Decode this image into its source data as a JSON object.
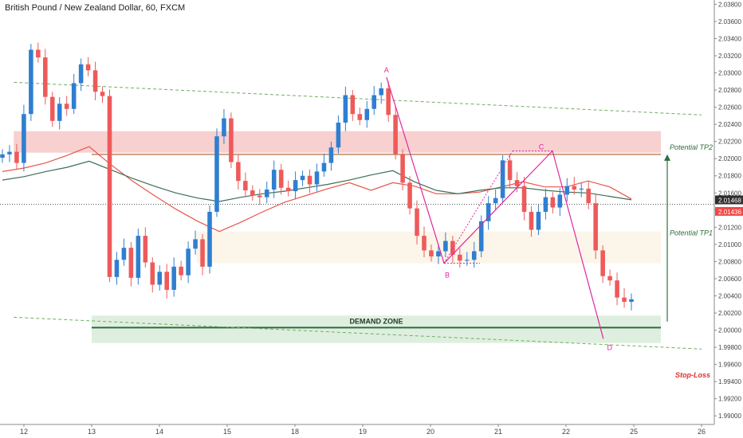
{
  "chart_data": {
    "type": "candlestick",
    "title": "British Pound / New Zealand Dollar, 60, FXCM",
    "y_axis": {
      "ticks": [
        "2.03800",
        "2.03600",
        "2.03400",
        "2.03200",
        "2.03000",
        "2.02800",
        "2.02600",
        "2.02400",
        "2.02200",
        "2.02000",
        "2.01800",
        "2.01600",
        "2.01400",
        "2.01200",
        "2.01000",
        "2.00800",
        "2.00600",
        "2.00400",
        "2.00200",
        "2.00000",
        "1.99800",
        "1.99600",
        "1.99400",
        "1.99200",
        "1.99000"
      ],
      "min": 1.989,
      "max": 2.0385,
      "price_labels": [
        {
          "text": "2.01468",
          "value": 2.01468,
          "color": "#2d2d2d"
        },
        {
          "text": "2.01436",
          "value": 2.01436,
          "color": "#f04848"
        }
      ]
    },
    "x_axis": {
      "ticks": [
        {
          "label": "12",
          "day": 12
        },
        {
          "label": "13",
          "day": 13
        },
        {
          "label": "14",
          "day": 14
        },
        {
          "label": "15",
          "day": 15
        },
        {
          "label": "18",
          "day": 16
        },
        {
          "label": "19",
          "day": 17
        },
        {
          "label": "20",
          "day": 18
        },
        {
          "label": "21",
          "day": 19
        },
        {
          "label": "22",
          "day": 20
        },
        {
          "label": "25",
          "day": 21
        },
        {
          "label": "26",
          "day": 22
        }
      ]
    },
    "zones": [
      {
        "name": "resistance-zone",
        "y1": 2.0207,
        "y2": 2.0232,
        "x1": 11.85,
        "x2": 21.4,
        "color": "#f7c8c8"
      },
      {
        "name": "mid-zone",
        "y1": 2.0078,
        "y2": 2.0115,
        "x1": 14.55,
        "x2": 21.4,
        "color": "#fbf3e6"
      },
      {
        "name": "demand-zone",
        "y1": 1.9985,
        "y2": 2.0017,
        "x1": 13.0,
        "x2": 21.4,
        "color": "#d9ecd9",
        "label": "DEMAND ZONE"
      }
    ],
    "levels": [
      {
        "name": "tp2-level",
        "value": 2.0205,
        "x1": 13.0,
        "x2": 21.4,
        "color": "#c9a184"
      },
      {
        "name": "demand-line",
        "value": 2.0003,
        "x1": 13.0,
        "x2": 21.4,
        "color": "#2e6b3e"
      }
    ],
    "channel": [
      {
        "name": "channel-top",
        "x1": 11.85,
        "y1": 2.0289,
        "x2": 22.0,
        "y2": 2.0251
      },
      {
        "name": "channel-bottom",
        "x1": 11.85,
        "y1": 2.0015,
        "x2": 22.0,
        "y2": 1.9978
      }
    ],
    "pattern_points": [
      {
        "label": "A",
        "x": 17.35,
        "y": 2.0295
      },
      {
        "label": "B",
        "x": 18.2,
        "y": 2.0078
      },
      {
        "label": "C",
        "x": 19.8,
        "y": 2.0209
      },
      {
        "label": "D",
        "x": 20.55,
        "y": 1.999
      }
    ],
    "targets": [
      {
        "label": "Potential TP2",
        "value": 2.0205
      },
      {
        "label": "Potential TP1",
        "value": 2.0105
      },
      {
        "label": "Stop-Loss",
        "value": 1.9945
      }
    ],
    "close": [
      2.0205,
      2.0208,
      2.0195,
      2.0252,
      2.0327,
      2.0318,
      2.0272,
      2.0244,
      2.0264,
      2.0258,
      2.0288,
      2.031,
      2.0303,
      2.0278,
      2.0273,
      2.0062,
      2.0082,
      2.0096,
      2.0061,
      2.011,
      2.0079,
      2.0053,
      2.0068,
      2.0047,
      2.0074,
      2.0064,
      2.0095,
      2.0106,
      2.0074,
      2.0138,
      2.0226,
      2.0247,
      2.0196,
      2.0174,
      2.0163,
      2.0157,
      2.0155,
      2.0164,
      2.0187,
      2.0166,
      2.0162,
      2.0175,
      2.018,
      2.017,
      2.0185,
      2.0195,
      2.0213,
      2.0242,
      2.0274,
      2.0252,
      2.0245,
      2.0258,
      2.0274,
      2.0282,
      2.0251,
      2.0205,
      2.0172,
      2.0142,
      2.011,
      2.0093,
      2.0086,
      2.0092,
      2.0104,
      2.0088,
      2.0081,
      2.0082,
      2.0092,
      2.0127,
      2.0148,
      2.0154,
      2.0198,
      2.0175,
      2.0168,
      2.0138,
      2.0117,
      2.0138,
      2.0155,
      2.0143,
      2.0158,
      2.0168,
      2.0164,
      2.0165,
      2.0148,
      2.0093,
      2.0063,
      2.0058,
      2.0038,
      2.0033,
      2.0036
    ],
    "opens_from_prev": true,
    "moving_averages": [
      {
        "name": "ma-red",
        "color": "#e8564a",
        "values": [
          2.0185,
          2.0189,
          2.0195,
          2.0204,
          2.0214,
          2.0193,
          2.0174,
          2.0157,
          2.0141,
          2.0127,
          2.0115,
          2.0126,
          2.0138,
          2.0149,
          2.0157,
          2.0165,
          2.0172,
          2.0163,
          2.0172,
          2.0168,
          2.0159,
          2.0159,
          2.0161,
          2.0167,
          2.0173,
          2.0167,
          2.0167,
          2.0174,
          2.0167,
          2.0153
        ]
      },
      {
        "name": "ma-green",
        "color": "#3c6e55",
        "values": [
          2.0175,
          2.0179,
          2.0185,
          2.019,
          2.0197,
          2.0187,
          2.0177,
          2.0168,
          2.016,
          2.0154,
          2.015,
          2.0155,
          2.0159,
          2.0162,
          2.0166,
          2.017,
          2.0175,
          2.0181,
          2.0186,
          2.0173,
          2.0163,
          2.0159,
          2.0163,
          2.0166,
          2.0166,
          2.0163,
          2.0161,
          2.016,
          2.0156,
          2.0152
        ]
      }
    ],
    "colors": {
      "up": "#2f7fd0",
      "down": "#ee5a5a",
      "pattern": "#e0289f",
      "target_arrow": "#2e6e3a",
      "stop": "#e03030",
      "channel": "#6fae5f"
    }
  }
}
